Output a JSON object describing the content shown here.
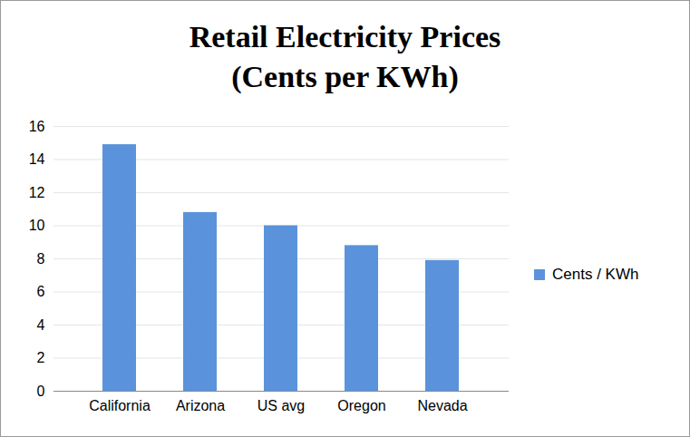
{
  "chart_data": {
    "type": "bar",
    "title": "Retail Electricity Prices",
    "subtitle": "(Cents per KWh)",
    "categories": [
      "California",
      "Arizona",
      "US avg",
      "Oregon",
      "Nevada"
    ],
    "series": [
      {
        "name": "Cents / KWh",
        "color": "#5a93dc",
        "values": [
          14.9,
          10.8,
          10.0,
          8.8,
          7.9
        ]
      }
    ],
    "ylim": [
      0,
      16
    ],
    "yticks": [
      0,
      2,
      4,
      6,
      8,
      10,
      12,
      14,
      16
    ],
    "grid": true,
    "legend": "right"
  }
}
